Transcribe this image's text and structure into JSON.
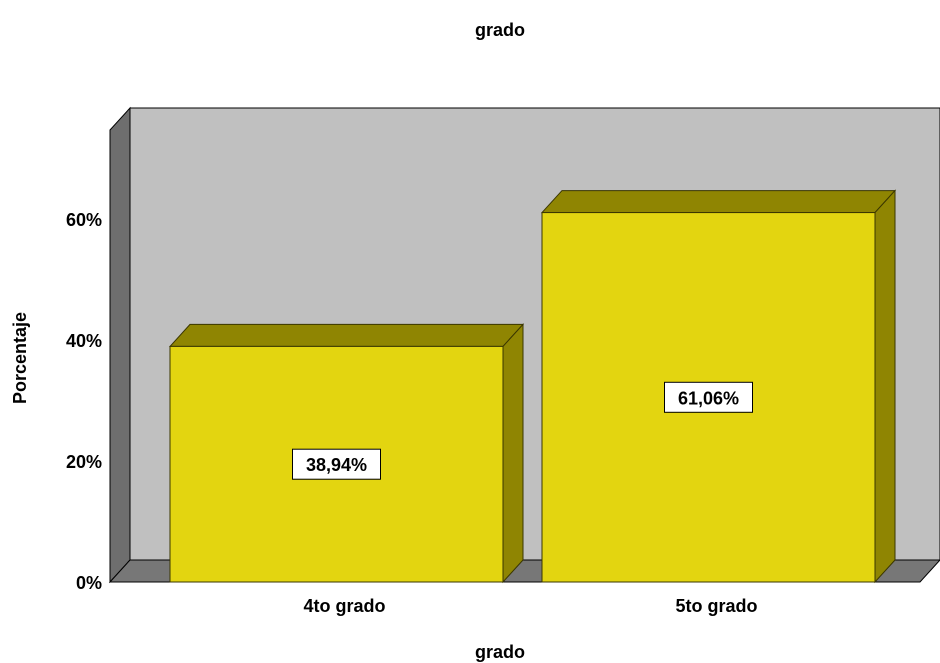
{
  "chart_data": {
    "type": "bar",
    "title": "grado",
    "xlabel": "grado",
    "ylabel": "Porcentaje",
    "categories": [
      "4to grado",
      "5to grado"
    ],
    "values": [
      38.94,
      61.06
    ],
    "data_labels": [
      "38,94%",
      "61,06%"
    ],
    "yticks": [
      "0%",
      "20%",
      "40%",
      "60%"
    ],
    "ytick_values": [
      0,
      20,
      40,
      60
    ],
    "ylim": [
      0,
      78
    ],
    "grid": false,
    "legend": "none",
    "style": "3d",
    "colors": {
      "bar_front": "#e3d510",
      "bar_top": "#8f8502",
      "bar_side": "#8f8502",
      "back_wall": "#c0c0c0",
      "left_wall": "#6e6e6e",
      "floor": "#777777"
    }
  }
}
